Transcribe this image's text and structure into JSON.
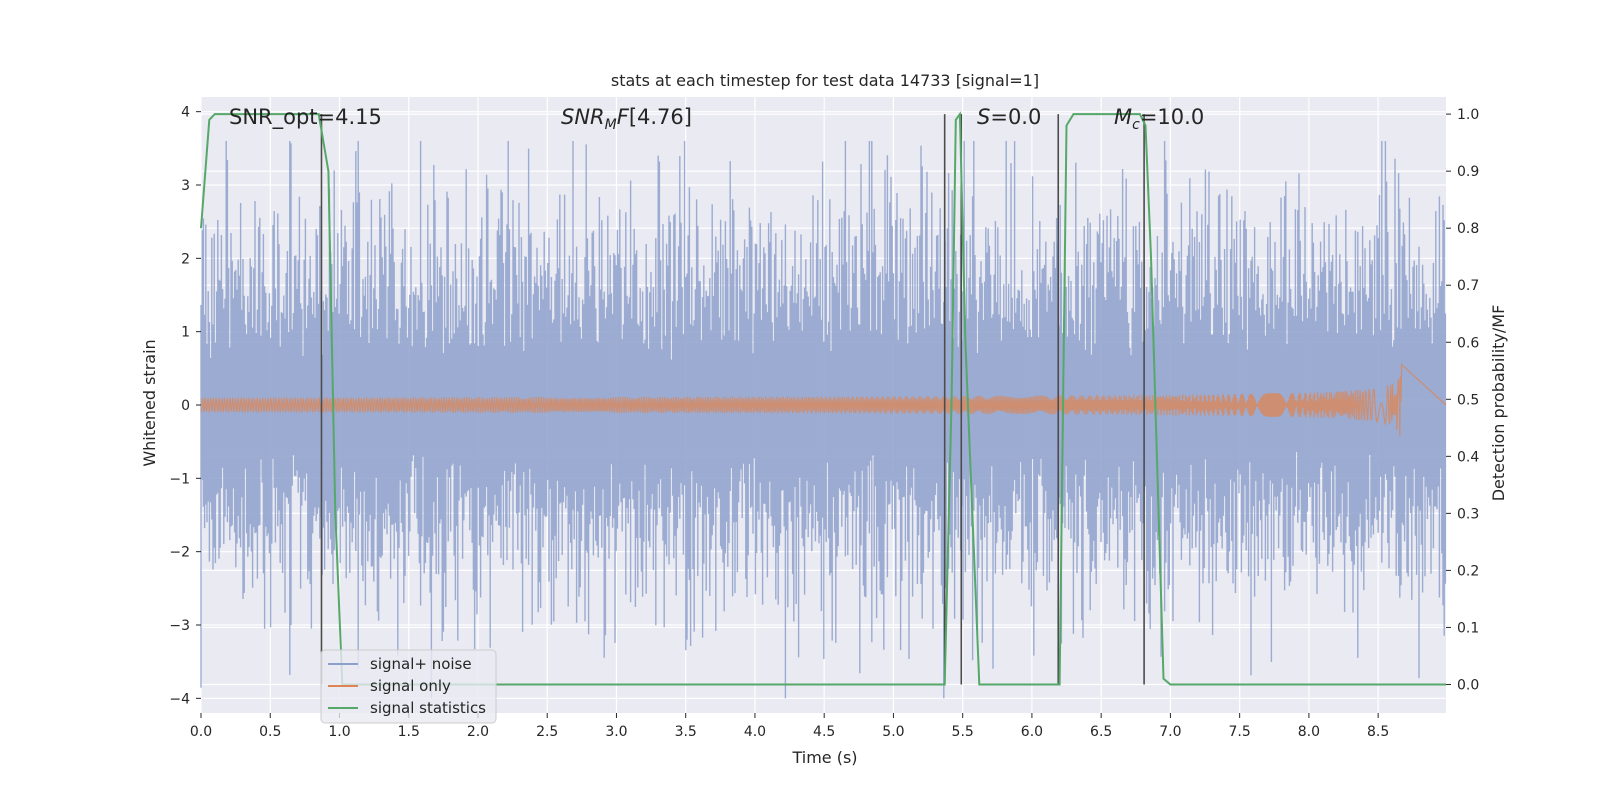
{
  "chart_data": {
    "type": "line",
    "title": "stats at each timestep for test data 14733 [signal=1]",
    "xlabel": "Time (s)",
    "ylabel": "Whitened strain",
    "y2label": "Detection probability/MF",
    "xlim": [
      0.0,
      8.99
    ],
    "ylim": [
      -4.2,
      4.2
    ],
    "y2lim": [
      -0.05,
      1.03
    ],
    "xticks": [
      "0.0",
      "0.5",
      "1.0",
      "1.5",
      "2.0",
      "2.5",
      "3.0",
      "3.5",
      "4.0",
      "4.5",
      "5.0",
      "5.5",
      "6.0",
      "6.5",
      "7.0",
      "7.5",
      "8.0",
      "8.5"
    ],
    "yticks": [
      "4",
      "3",
      "2",
      "1",
      "0",
      "−1",
      "−2",
      "−3",
      "−4"
    ],
    "y2ticks": [
      "1.0",
      "0.9",
      "0.8",
      "0.7",
      "0.6",
      "0.5",
      "0.4",
      "0.3",
      "0.2",
      "0.1",
      "0.0"
    ],
    "grid": true,
    "legend_position": "lower-left",
    "annotations": {
      "snr_opt": "SNR_opt=4.15",
      "snr_mf": "[4.76]",
      "s": "=0.0",
      "mc": "=10.0"
    },
    "series": [
      {
        "name": "signal+ noise",
        "color": "#8da0cb",
        "kind": "noise",
        "amplitude_std": 1.0,
        "range": [
          -4.0,
          3.6
        ]
      },
      {
        "name": "signal only",
        "color": "#dd8452",
        "kind": "chirp",
        "t_end": 8.67,
        "peak_amplitude": 0.55
      },
      {
        "name": "signal statistics",
        "color": "#55a868",
        "axis": "right",
        "x": [
          0.0,
          0.06,
          0.1,
          0.5,
          0.85,
          0.92,
          0.97,
          1.02,
          4.0,
          5.37,
          5.42,
          5.45,
          5.48,
          5.52,
          5.62,
          5.75,
          6.18,
          6.2,
          6.25,
          6.3,
          6.78,
          6.82,
          6.86,
          6.95,
          7.0,
          8.99
        ],
        "y": [
          0.8,
          0.99,
          1.0,
          1.0,
          1.0,
          0.9,
          0.3,
          0.0,
          0.0,
          0.0,
          0.5,
          0.99,
          1.0,
          0.6,
          0.0,
          0.0,
          0.0,
          0.0,
          0.98,
          1.0,
          1.0,
          0.98,
          0.75,
          0.01,
          0.0,
          0.0
        ]
      }
    ],
    "vertical_lines": {
      "color": "#4c4c4c",
      "x": [
        0.87,
        5.37,
        5.49,
        6.19,
        6.81
      ]
    },
    "colors": {
      "plot_background": "#eaeaf2",
      "grid": "#ffffff"
    }
  }
}
